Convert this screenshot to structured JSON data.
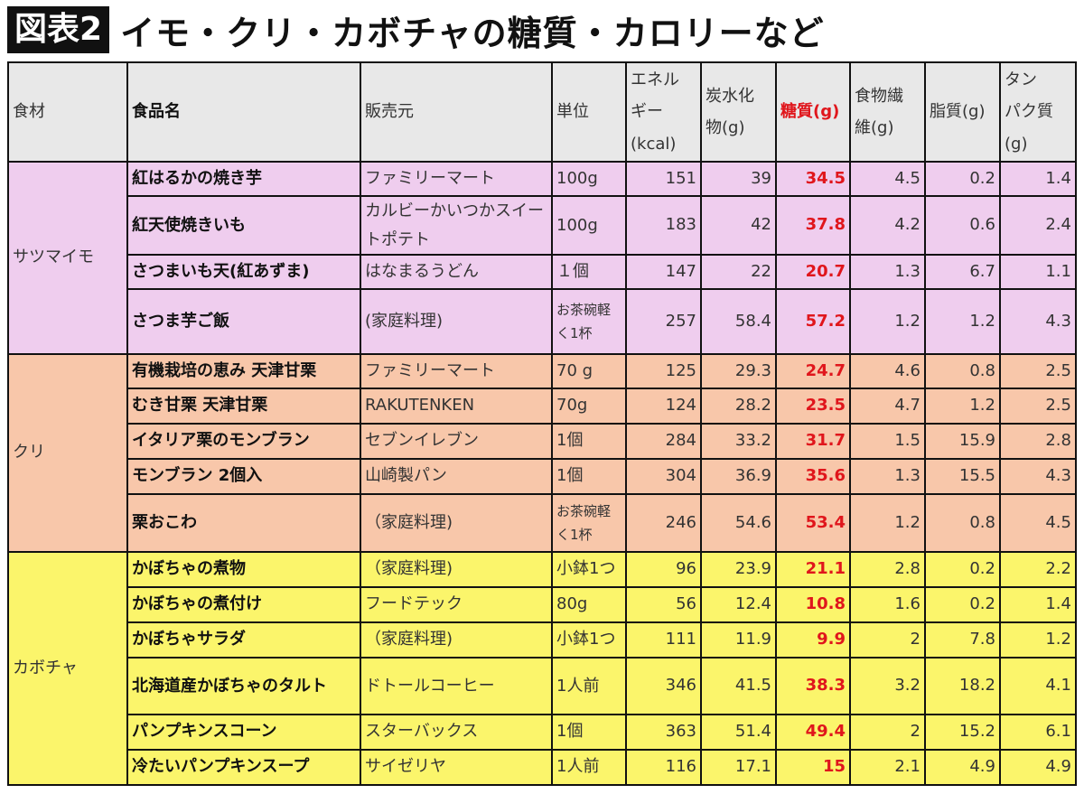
{
  "title": {
    "badge": "図表2",
    "text": "イモ・クリ・カボチャの糖質・カロリーなど"
  },
  "headers": [
    "食材",
    "食品名",
    "販売元",
    "単位",
    "エネルギー(kcal)",
    "炭水化物(g)",
    "糖質(g)",
    "食物繊維(g)",
    "脂質(g)",
    "タンパク質(g)"
  ],
  "header_display": [
    "食材",
    "食品名",
    "販売元",
    "単位",
    "エネル\nギー\n(kcal)",
    "炭水化\n物(g)",
    "糖質(g)",
    "食物繊\n維(g)",
    "脂質(g)",
    "タン\nパク質\n(g)"
  ],
  "colors": {
    "satsumaimo": "#efcdee",
    "kuri": "#f8c7aa",
    "kabocha": "#fbf56b",
    "header": "#e8e8e8",
    "sugar_text": "#e0161c"
  },
  "groups": [
    {
      "name": "サツマイモ",
      "rows": [
        [
          "紅はるかの焼き芋",
          "ファミリーマート",
          "100g",
          "151",
          "39",
          "34.5",
          "4.5",
          "0.2",
          "1.4"
        ],
        [
          "紅天使焼きいも",
          "カルビーかいつかスイートポテト",
          "100g",
          "183",
          "42",
          "37.8",
          "4.2",
          "0.6",
          "2.4"
        ],
        [
          "さつまいも天(紅あずま)",
          "はなまるうどん",
          "１個",
          "147",
          "22",
          "20.7",
          "1.3",
          "6.7",
          "1.1"
        ],
        [
          "さつま芋ご飯",
          "(家庭料理)",
          "お茶碗軽く1杯",
          "257",
          "58.4",
          "57.2",
          "1.2",
          "1.2",
          "4.3"
        ]
      ]
    },
    {
      "name": "クリ",
      "rows": [
        [
          "有機栽培の恵み 天津甘栗",
          "ファミリーマート",
          "70 g",
          "125",
          "29.3",
          "24.7",
          "4.6",
          "0.8",
          "2.5"
        ],
        [
          "むき甘栗 天津甘栗",
          "RAKUTENKEN",
          "70g",
          "124",
          "28.2",
          "23.5",
          "4.7",
          "1.2",
          "2.5"
        ],
        [
          "イタリア栗のモンブラン",
          "セブンイレブン",
          "1個",
          "284",
          "33.2",
          "31.7",
          "1.5",
          "15.9",
          "2.8"
        ],
        [
          "モンブラン 2個入",
          "山崎製パン",
          "1個",
          "304",
          "36.9",
          "35.6",
          "1.3",
          "15.5",
          "4.3"
        ],
        [
          "栗おこわ",
          "（家庭料理)",
          "お茶碗軽く1杯",
          "246",
          "54.6",
          "53.4",
          "1.2",
          "0.8",
          "4.5"
        ]
      ]
    },
    {
      "name": "カボチャ",
      "rows": [
        [
          "かぼちゃの煮物",
          "（家庭料理)",
          "小鉢1つ",
          "96",
          "23.9",
          "21.1",
          "2.8",
          "0.2",
          "2.2"
        ],
        [
          "かぼちゃの煮付け",
          "フードテック",
          "80g",
          "56",
          "12.4",
          "10.8",
          "1.6",
          "0.2",
          "1.4"
        ],
        [
          "かぼちゃサラダ",
          "（家庭料理)",
          "小鉢1つ",
          "111",
          "11.9",
          "9.9",
          "2",
          "7.8",
          "1.2"
        ],
        [
          "北海道産かぼちゃのタルト",
          "ドトールコーヒー",
          "1人前",
          "346",
          "41.5",
          "38.3",
          "3.2",
          "18.2",
          "4.1"
        ],
        [
          "パンプキンスコーン",
          "スターバックス",
          "1個",
          "363",
          "51.4",
          "49.4",
          "2",
          "15.2",
          "6.1"
        ],
        [
          "冷たいパンプキンスープ",
          "サイゼリヤ",
          "1人前",
          "116",
          "17.1",
          "15",
          "2.1",
          "4.9",
          "4.9"
        ]
      ]
    }
  ]
}
